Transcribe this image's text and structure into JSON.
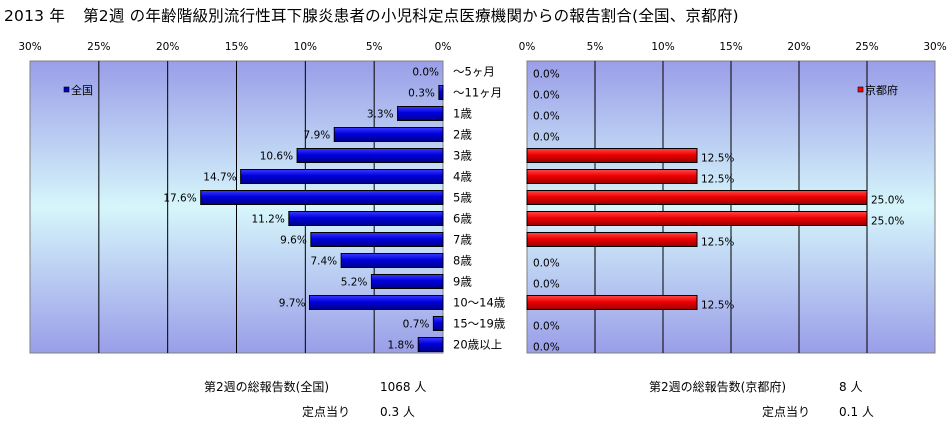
{
  "title": {
    "year": "2013 年",
    "text": "第2週 の年齢階級別流行性耳下腺炎患者の小児科定点医療機関からの報告割合(全国、京都府)"
  },
  "chart_data": [
    {
      "type": "bar",
      "orientation": "horizontal",
      "direction": "right-to-left",
      "legend": "全国",
      "legend_position": "top-left",
      "color": "#0000CC",
      "categories": [
        "～5ヶ月",
        "～11ヶ月",
        "1歳",
        "2歳",
        "3歳",
        "4歳",
        "5歳",
        "6歳",
        "7歳",
        "8歳",
        "9歳",
        "10～14歳",
        "15～19歳",
        "20歳以上"
      ],
      "values": [
        0.0,
        0.3,
        3.3,
        7.9,
        10.6,
        14.7,
        17.6,
        11.2,
        9.6,
        7.4,
        5.2,
        9.7,
        0.7,
        1.8
      ],
      "value_labels": [
        "0.0%",
        "0.3%",
        "3.3%",
        "7.9%",
        "10.6%",
        "14.7%",
        "17.6%",
        "11.2%",
        "9.6%",
        "7.4%",
        "5.2%",
        "9.7%",
        "0.7%",
        "1.8%"
      ],
      "xlim": [
        0,
        30
      ],
      "tick_labels": [
        "30%",
        "25%",
        "20%",
        "15%",
        "10%",
        "5%",
        "0%"
      ],
      "grid": true
    },
    {
      "type": "bar",
      "orientation": "horizontal",
      "direction": "left-to-right",
      "legend": "京都府",
      "legend_position": "top-right",
      "color": "#FF0000",
      "categories": [
        "～5ヶ月",
        "～11ヶ月",
        "1歳",
        "2歳",
        "3歳",
        "4歳",
        "5歳",
        "6歳",
        "7歳",
        "8歳",
        "9歳",
        "10～14歳",
        "15～19歳",
        "20歳以上"
      ],
      "values": [
        0.0,
        0.0,
        0.0,
        0.0,
        12.5,
        12.5,
        25.0,
        25.0,
        12.5,
        0.0,
        0.0,
        12.5,
        0.0,
        0.0
      ],
      "value_labels": [
        "0.0%",
        "0.0%",
        "0.0%",
        "0.0%",
        "12.5%",
        "12.5%",
        "25.0%",
        "25.0%",
        "12.5%",
        "0.0%",
        "0.0%",
        "12.5%",
        "0.0%",
        "0.0%"
      ],
      "xlim": [
        0,
        30
      ],
      "tick_labels": [
        "0%",
        "5%",
        "10%",
        "15%",
        "20%",
        "25%",
        "30%"
      ],
      "grid": true
    }
  ],
  "footer": {
    "national_total_label": "第2週の総報告数(全国)",
    "national_total_value": "1068 人",
    "national_per_site_label": "定点当り",
    "national_per_site_value": "0.3 人",
    "kyoto_total_label": "第2週の総報告数(京都府)",
    "kyoto_total_value": "8 人",
    "kyoto_per_site_label": "定点当り",
    "kyoto_per_site_value": "0.1 人"
  }
}
